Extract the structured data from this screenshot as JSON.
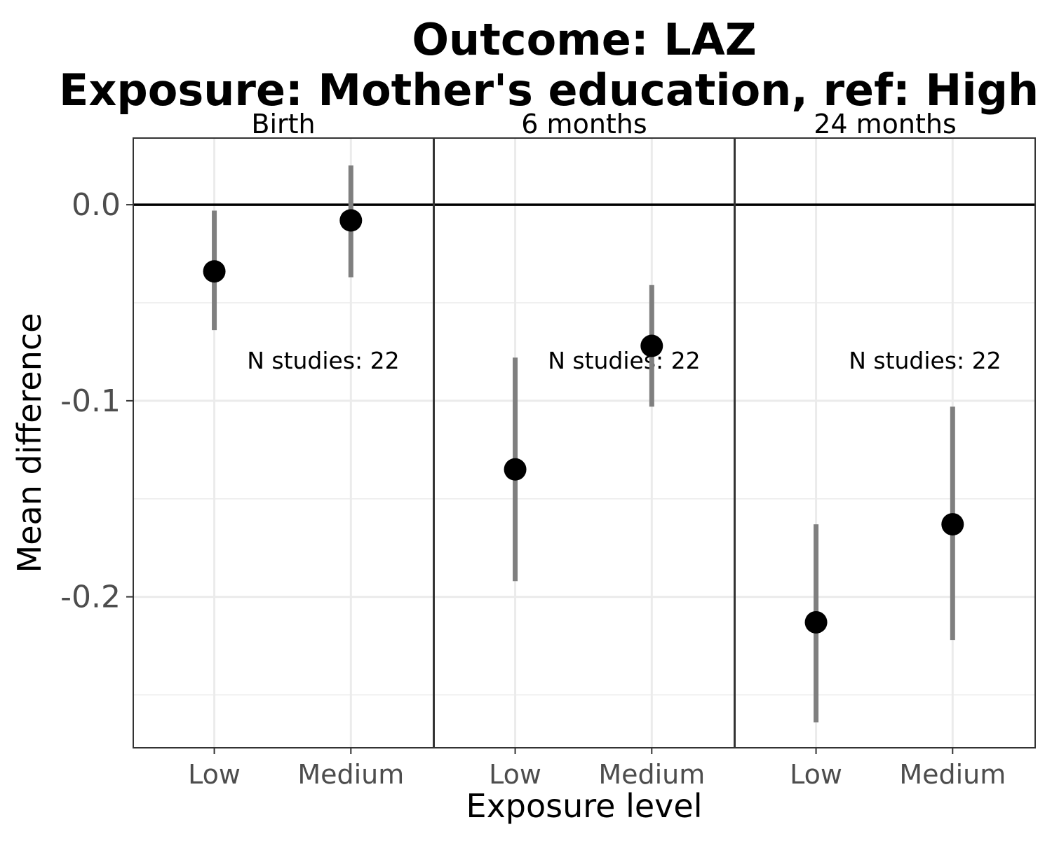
{
  "chart_data": {
    "type": "scatter",
    "subtype": "point-range faceted",
    "title_line1": "Outcome: LAZ",
    "title_line2": "Exposure: Mother's education, ref: High",
    "xlabel": "Exposure level",
    "ylabel": "Mean difference",
    "categories": [
      "Low",
      "Medium"
    ],
    "ylim": [
      -0.277,
      0.034
    ],
    "yticks": [
      0.0,
      -0.1,
      -0.2
    ],
    "ytick_labels": [
      "0.0",
      "-0.1",
      "-0.2"
    ],
    "reference_line_y": 0.0,
    "grid": true,
    "panels": [
      {
        "name": "Birth",
        "annotation": "N studies: 22",
        "points": [
          {
            "x": "Low",
            "y": -0.034,
            "lower": -0.064,
            "upper": -0.003
          },
          {
            "x": "Medium",
            "y": -0.008,
            "lower": -0.037,
            "upper": 0.02
          }
        ]
      },
      {
        "name": "6 months",
        "annotation": "N studies: 22",
        "points": [
          {
            "x": "Low",
            "y": -0.135,
            "lower": -0.192,
            "upper": -0.078
          },
          {
            "x": "Medium",
            "y": -0.072,
            "lower": -0.103,
            "upper": -0.041
          }
        ]
      },
      {
        "name": "24 months",
        "annotation": "N studies: 22",
        "points": [
          {
            "x": "Low",
            "y": -0.213,
            "lower": -0.264,
            "upper": -0.163
          },
          {
            "x": "Medium",
            "y": -0.163,
            "lower": -0.222,
            "upper": -0.103
          }
        ]
      }
    ]
  }
}
